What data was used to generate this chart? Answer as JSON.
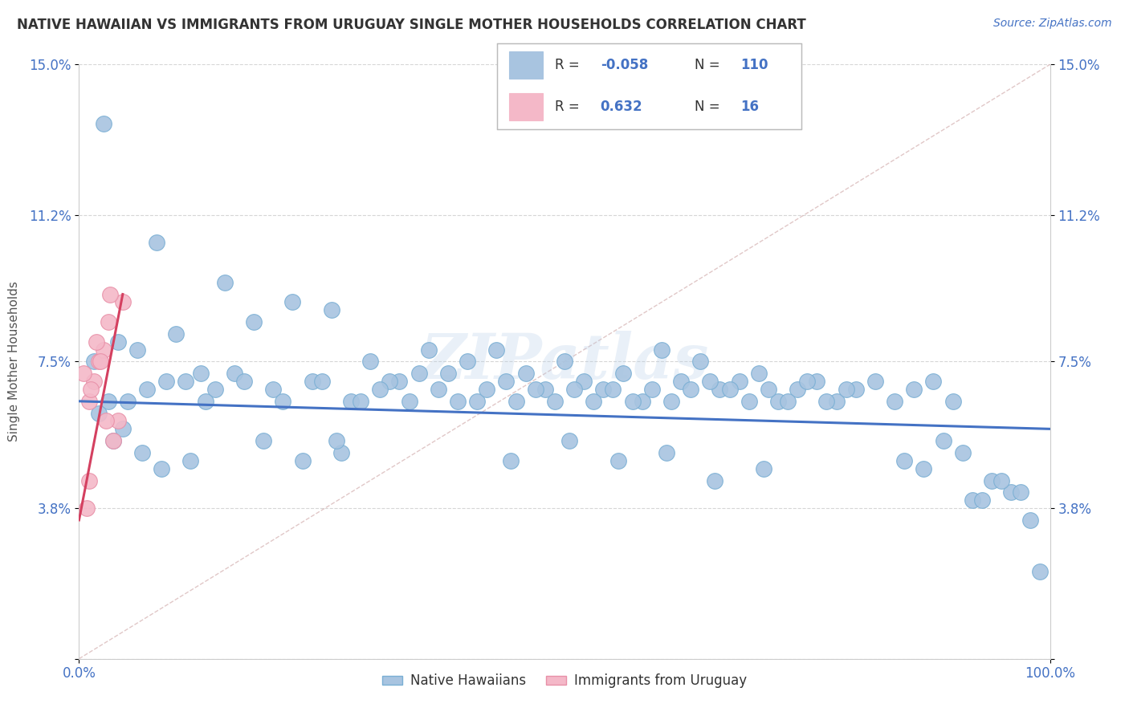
{
  "title": "NATIVE HAWAIIAN VS IMMIGRANTS FROM URUGUAY SINGLE MOTHER HOUSEHOLDS CORRELATION CHART",
  "source": "Source: ZipAtlas.com",
  "ylabel": "Single Mother Households",
  "xmin": 0.0,
  "xmax": 100.0,
  "ymin": 0.0,
  "ymax": 15.0,
  "ytick_vals": [
    0.0,
    3.8,
    7.5,
    11.2,
    15.0
  ],
  "ytick_labels": [
    "",
    "3.8%",
    "7.5%",
    "11.2%",
    "15.0%"
  ],
  "xtick_vals": [
    0.0,
    100.0
  ],
  "xtick_labels": [
    "0.0%",
    "100.0%"
  ],
  "grid_color": "#cccccc",
  "background_color": "#ffffff",
  "watermark": "ZIPatlas",
  "series1_label": "Native Hawaiians",
  "series2_label": "Immigrants from Uruguay",
  "series1_color": "#a8c4e0",
  "series2_color": "#f4b8c8",
  "series1_edge": "#7aafd4",
  "series2_edge": "#e890a8",
  "series1_R": -0.058,
  "series1_N": 110,
  "series2_R": 0.632,
  "series2_N": 16,
  "series1_line_color": "#4472c4",
  "series2_line_color": "#d44060",
  "ref_line_color": "#d4b0b0",
  "legend_text_color": "#4472c4",
  "title_color": "#333333",
  "source_color": "#4472c4",
  "ylabel_color": "#555555",
  "tick_color": "#4472c4",
  "series1_x": [
    2.5,
    8.0,
    15.0,
    1.5,
    4.0,
    6.0,
    10.0,
    12.5,
    18.0,
    22.0,
    26.0,
    30.0,
    33.0,
    36.0,
    38.0,
    40.0,
    43.0,
    46.0,
    48.0,
    50.0,
    52.0,
    54.0,
    56.0,
    58.0,
    60.0,
    62.0,
    64.0,
    66.0,
    68.0,
    70.0,
    72.0,
    74.0,
    76.0,
    78.0,
    80.0,
    82.0,
    84.0,
    86.0,
    88.0,
    90.0,
    3.0,
    7.0,
    11.0,
    14.0,
    16.0,
    20.0,
    24.0,
    28.0,
    32.0,
    35.0,
    37.0,
    41.0,
    44.0,
    47.0,
    49.0,
    51.0,
    53.0,
    55.0,
    57.0,
    59.0,
    61.0,
    63.0,
    65.0,
    67.0,
    69.0,
    71.0,
    73.0,
    75.0,
    77.0,
    79.0,
    5.0,
    9.0,
    13.0,
    17.0,
    21.0,
    25.0,
    29.0,
    31.0,
    34.0,
    39.0,
    42.0,
    45.0,
    92.0,
    94.0,
    96.0,
    98.0,
    85.0,
    87.0,
    89.0,
    91.0,
    19.0,
    23.0,
    27.0,
    8.5,
    11.5,
    3.5,
    6.5,
    93.0,
    95.0,
    97.0,
    2.0,
    4.5,
    26.5,
    44.5,
    50.5,
    55.5,
    60.5,
    65.5,
    70.5,
    99.0
  ],
  "series1_y": [
    13.5,
    10.5,
    9.5,
    7.5,
    8.0,
    7.8,
    8.2,
    7.2,
    8.5,
    9.0,
    8.8,
    7.5,
    7.0,
    7.8,
    7.2,
    7.5,
    7.8,
    7.2,
    6.8,
    7.5,
    7.0,
    6.8,
    7.2,
    6.5,
    7.8,
    7.0,
    7.5,
    6.8,
    7.0,
    7.2,
    6.5,
    6.8,
    7.0,
    6.5,
    6.8,
    7.0,
    6.5,
    6.8,
    7.0,
    6.5,
    6.5,
    6.8,
    7.0,
    6.8,
    7.2,
    6.8,
    7.0,
    6.5,
    7.0,
    7.2,
    6.8,
    6.5,
    7.0,
    6.8,
    6.5,
    6.8,
    6.5,
    6.8,
    6.5,
    6.8,
    6.5,
    6.8,
    7.0,
    6.8,
    6.5,
    6.8,
    6.5,
    7.0,
    6.5,
    6.8,
    6.5,
    7.0,
    6.5,
    7.0,
    6.5,
    7.0,
    6.5,
    6.8,
    6.5,
    6.5,
    6.8,
    6.5,
    4.0,
    4.5,
    4.2,
    3.5,
    5.0,
    4.8,
    5.5,
    5.2,
    5.5,
    5.0,
    5.2,
    4.8,
    5.0,
    5.5,
    5.2,
    4.0,
    4.5,
    4.2,
    6.2,
    5.8,
    5.5,
    5.0,
    5.5,
    5.0,
    5.2,
    4.5,
    4.8,
    2.2
  ],
  "series2_x": [
    1.0,
    1.5,
    2.0,
    2.5,
    3.0,
    3.5,
    4.0,
    4.5,
    0.5,
    1.2,
    1.8,
    2.2,
    2.8,
    3.2,
    0.8,
    1.0
  ],
  "series2_y": [
    6.5,
    7.0,
    7.5,
    7.8,
    8.5,
    5.5,
    6.0,
    9.0,
    7.2,
    6.8,
    8.0,
    7.5,
    6.0,
    9.2,
    3.8,
    4.5
  ],
  "blue_line_x0": 0.0,
  "blue_line_x1": 100.0,
  "blue_line_y0": 6.5,
  "blue_line_y1": 5.8,
  "pink_line_x0": 0.0,
  "pink_line_x1": 4.5,
  "pink_line_y0": 3.5,
  "pink_line_y1": 9.2
}
